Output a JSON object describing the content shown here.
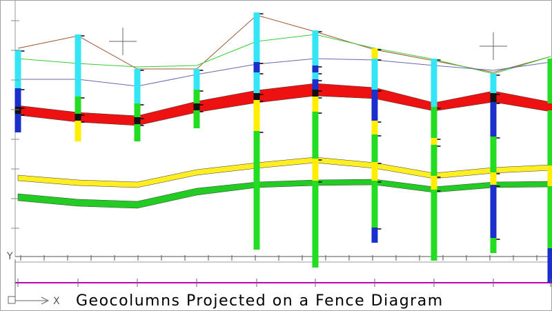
{
  "drawing": {
    "title": "Geocolumns Projected on a Fence Diagram",
    "axis_labels": {
      "y": "Y",
      "x": "X"
    }
  }
}
